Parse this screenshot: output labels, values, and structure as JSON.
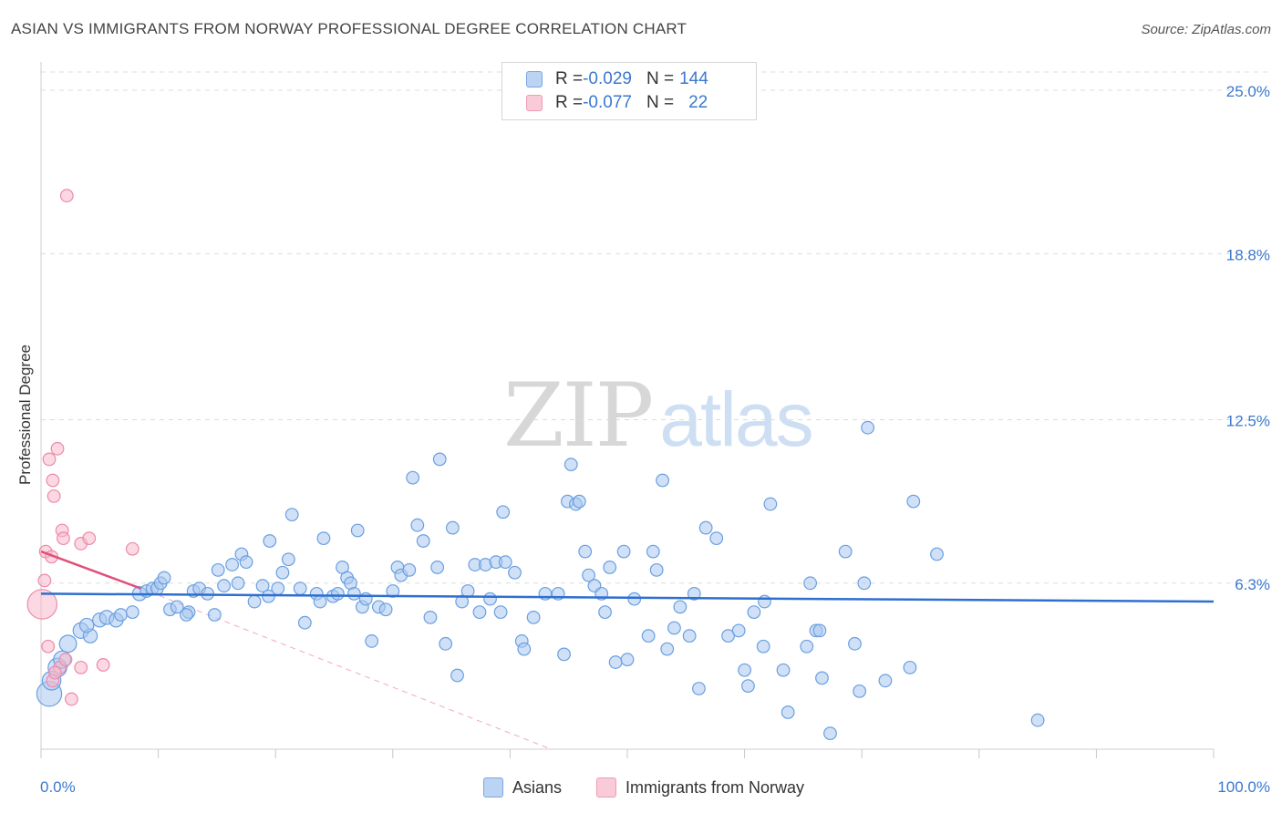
{
  "title": "ASIAN VS IMMIGRANTS FROM NORWAY PROFESSIONAL DEGREE CORRELATION CHART",
  "source": "Source: ZipAtlas.com",
  "watermark": {
    "zip": "ZIP",
    "atlas": "atlas"
  },
  "legend": {
    "asians": {
      "r_label": "R = ",
      "r_value": "-0.029",
      "n_label": "N = ",
      "n_value": "144"
    },
    "norway": {
      "r_label": "R = ",
      "r_value": "-0.077",
      "n_label": "N = ",
      "n_value": "22"
    }
  },
  "bottom_legend": {
    "asians": "Asians",
    "norway": "Immigrants from Norway"
  },
  "colors": {
    "asian_fill": "#a9c8f0",
    "asian_stroke": "#6a9fe0",
    "asian_line": "#2e6fd0",
    "norway_fill": "#f7b8cb",
    "norway_stroke": "#ec8aaa",
    "norway_line": "#e0507a",
    "grid": "#dcdcdc",
    "tick_label": "#3b78d0"
  },
  "chart_data": {
    "type": "scatter",
    "title": "ASIAN VS IMMIGRANTS FROM NORWAY PROFESSIONAL DEGREE CORRELATION CHART",
    "xlabel": "",
    "ylabel": "Professional Degree",
    "xlim": [
      0,
      100
    ],
    "ylim": [
      0,
      25.9
    ],
    "x_tick_labels": [
      "0.0%",
      "100.0%"
    ],
    "y_ticks": [
      6.3,
      12.5,
      18.8,
      25.0
    ],
    "y_tick_labels": [
      "6.3%",
      "12.5%",
      "18.8%",
      "25.0%"
    ],
    "grid": true,
    "series": [
      {
        "name": "Asians",
        "trend": {
          "x": [
            0,
            100
          ],
          "y": [
            5.9,
            5.6
          ]
        },
        "points": [
          [
            0.7,
            2.1,
            1.6
          ],
          [
            0.9,
            2.6,
            1.2
          ],
          [
            1.4,
            3.1,
            1.2
          ],
          [
            1.8,
            3.4,
            1.1
          ],
          [
            2.3,
            4.0,
            1.1
          ],
          [
            3.4,
            4.5,
            1.0
          ],
          [
            4.2,
            4.3,
            0.9
          ],
          [
            3.9,
            4.7,
            0.9
          ],
          [
            5.0,
            4.9,
            0.9
          ],
          [
            5.6,
            5.0,
            0.9
          ],
          [
            6.4,
            4.9,
            0.9
          ],
          [
            6.8,
            5.1,
            0.8
          ],
          [
            7.8,
            5.2,
            0.8
          ],
          [
            8.4,
            5.9,
            0.9
          ],
          [
            9.0,
            6.0,
            0.8
          ],
          [
            9.5,
            6.1,
            0.8
          ],
          [
            9.9,
            6.1,
            0.8
          ],
          [
            10.2,
            6.3,
            0.8
          ],
          [
            10.5,
            6.5,
            0.8
          ],
          [
            11.0,
            5.3,
            0.8
          ],
          [
            11.6,
            5.4,
            0.8
          ],
          [
            12.6,
            5.2,
            0.8
          ],
          [
            12.4,
            5.1,
            0.8
          ],
          [
            13.0,
            6.0,
            0.8
          ],
          [
            13.5,
            6.1,
            0.8
          ],
          [
            14.2,
            5.9,
            0.8
          ],
          [
            14.8,
            5.1,
            0.8
          ],
          [
            15.1,
            6.8,
            0.8
          ],
          [
            15.6,
            6.2,
            0.8
          ],
          [
            16.3,
            7.0,
            0.8
          ],
          [
            16.8,
            6.3,
            0.8
          ],
          [
            17.1,
            7.4,
            0.8
          ],
          [
            17.5,
            7.1,
            0.8
          ],
          [
            18.2,
            5.6,
            0.8
          ],
          [
            18.9,
            6.2,
            0.8
          ],
          [
            19.4,
            5.8,
            0.8
          ],
          [
            19.5,
            7.9,
            0.8
          ],
          [
            20.2,
            6.1,
            0.8
          ],
          [
            20.6,
            6.7,
            0.8
          ],
          [
            21.1,
            7.2,
            0.8
          ],
          [
            21.4,
            8.9,
            0.8
          ],
          [
            22.1,
            6.1,
            0.8
          ],
          [
            22.5,
            4.8,
            0.8
          ],
          [
            23.5,
            5.9,
            0.8
          ],
          [
            23.8,
            5.6,
            0.8
          ],
          [
            24.1,
            8.0,
            0.8
          ],
          [
            24.9,
            5.8,
            0.8
          ],
          [
            25.3,
            5.9,
            0.8
          ],
          [
            25.7,
            6.9,
            0.8
          ],
          [
            26.1,
            6.5,
            0.8
          ],
          [
            26.4,
            6.3,
            0.8
          ],
          [
            26.7,
            5.9,
            0.8
          ],
          [
            27.0,
            8.3,
            0.8
          ],
          [
            27.4,
            5.4,
            0.8
          ],
          [
            27.7,
            5.7,
            0.8
          ],
          [
            28.2,
            4.1,
            0.8
          ],
          [
            28.8,
            5.4,
            0.8
          ],
          [
            29.4,
            5.3,
            0.8
          ],
          [
            30.0,
            6.0,
            0.8
          ],
          [
            30.4,
            6.9,
            0.8
          ],
          [
            30.7,
            6.6,
            0.8
          ],
          [
            31.4,
            6.8,
            0.8
          ],
          [
            31.7,
            10.3,
            0.8
          ],
          [
            32.1,
            8.5,
            0.8
          ],
          [
            32.6,
            7.9,
            0.8
          ],
          [
            33.2,
            5.0,
            0.8
          ],
          [
            33.8,
            6.9,
            0.8
          ],
          [
            34.0,
            11.0,
            0.8
          ],
          [
            34.5,
            4.0,
            0.8
          ],
          [
            35.1,
            8.4,
            0.8
          ],
          [
            35.5,
            2.8,
            0.8
          ],
          [
            35.9,
            5.6,
            0.8
          ],
          [
            36.4,
            6.0,
            0.8
          ],
          [
            37.0,
            7.0,
            0.8
          ],
          [
            37.4,
            5.2,
            0.8
          ],
          [
            37.9,
            7.0,
            0.8
          ],
          [
            38.3,
            5.7,
            0.8
          ],
          [
            38.8,
            7.1,
            0.8
          ],
          [
            39.2,
            5.2,
            0.8
          ],
          [
            39.6,
            7.1,
            0.8
          ],
          [
            39.4,
            9.0,
            0.8
          ],
          [
            40.4,
            6.7,
            0.8
          ],
          [
            41.0,
            4.1,
            0.8
          ],
          [
            41.2,
            3.8,
            0.8
          ],
          [
            42.0,
            5.0,
            0.8
          ],
          [
            43.0,
            5.9,
            0.8
          ],
          [
            44.1,
            5.9,
            0.8
          ],
          [
            44.6,
            3.6,
            0.8
          ],
          [
            44.9,
            9.4,
            0.8
          ],
          [
            45.2,
            10.8,
            0.8
          ],
          [
            45.6,
            9.3,
            0.8
          ],
          [
            45.9,
            9.4,
            0.8
          ],
          [
            46.4,
            7.5,
            0.8
          ],
          [
            46.7,
            6.6,
            0.8
          ],
          [
            47.2,
            6.2,
            0.8
          ],
          [
            47.8,
            5.9,
            0.8
          ],
          [
            48.1,
            5.2,
            0.8
          ],
          [
            48.5,
            6.9,
            0.8
          ],
          [
            49.0,
            3.3,
            0.8
          ],
          [
            49.7,
            7.5,
            0.8
          ],
          [
            50.0,
            3.4,
            0.8
          ],
          [
            50.6,
            5.7,
            0.8
          ],
          [
            51.8,
            4.3,
            0.8
          ],
          [
            52.2,
            7.5,
            0.8
          ],
          [
            52.5,
            6.8,
            0.8
          ],
          [
            53.0,
            10.2,
            0.8
          ],
          [
            53.4,
            3.8,
            0.8
          ],
          [
            54.0,
            4.6,
            0.8
          ],
          [
            54.5,
            5.4,
            0.8
          ],
          [
            55.3,
            4.3,
            0.8
          ],
          [
            55.7,
            5.9,
            0.8
          ],
          [
            56.1,
            2.3,
            0.8
          ],
          [
            56.7,
            8.4,
            0.8
          ],
          [
            57.6,
            8.0,
            0.8
          ],
          [
            58.6,
            4.3,
            0.8
          ],
          [
            59.5,
            4.5,
            0.8
          ],
          [
            60.0,
            3.0,
            0.8
          ],
          [
            60.3,
            2.4,
            0.8
          ],
          [
            60.8,
            5.2,
            0.8
          ],
          [
            61.6,
            3.9,
            0.8
          ],
          [
            61.7,
            5.6,
            0.8
          ],
          [
            62.2,
            9.3,
            0.8
          ],
          [
            63.3,
            3.0,
            0.8
          ],
          [
            63.7,
            1.4,
            0.8
          ],
          [
            65.3,
            3.9,
            0.8
          ],
          [
            65.6,
            6.3,
            0.8
          ],
          [
            66.1,
            4.5,
            0.8
          ],
          [
            66.4,
            4.5,
            0.8
          ],
          [
            66.6,
            2.7,
            0.8
          ],
          [
            67.3,
            0.6,
            0.8
          ],
          [
            68.6,
            7.5,
            0.8
          ],
          [
            69.4,
            4.0,
            0.8
          ],
          [
            69.8,
            2.2,
            0.8
          ],
          [
            70.2,
            6.3,
            0.8
          ],
          [
            70.5,
            12.2,
            0.8
          ],
          [
            72.0,
            2.6,
            0.8
          ],
          [
            74.1,
            3.1,
            0.8
          ],
          [
            74.4,
            9.4,
            0.8
          ],
          [
            76.4,
            7.4,
            0.8
          ],
          [
            85.0,
            1.1,
            0.8
          ]
        ]
      },
      {
        "name": "Immigrants from Norway",
        "trend": {
          "x": [
            0,
            8.5
          ],
          "y": [
            7.5,
            6.1
          ]
        },
        "trend_extension": {
          "x": [
            8.5,
            43.5
          ],
          "y": [
            6.1,
            0
          ]
        },
        "points": [
          [
            0.1,
            5.5,
            1.9
          ],
          [
            0.3,
            6.4,
            0.8
          ],
          [
            0.4,
            7.5,
            0.8
          ],
          [
            0.7,
            11.0,
            0.8
          ],
          [
            0.9,
            7.3,
            0.8
          ],
          [
            1.0,
            10.2,
            0.8
          ],
          [
            1.1,
            9.6,
            0.8
          ],
          [
            1.4,
            11.4,
            0.8
          ],
          [
            1.8,
            8.3,
            0.8
          ],
          [
            1.9,
            8.0,
            0.8
          ],
          [
            2.2,
            21.0,
            0.8
          ],
          [
            3.4,
            7.8,
            0.8
          ],
          [
            4.1,
            8.0,
            0.8
          ],
          [
            7.8,
            7.6,
            0.8
          ],
          [
            0.6,
            3.9,
            0.8
          ],
          [
            1.0,
            2.6,
            0.8
          ],
          [
            1.6,
            3.1,
            0.8
          ],
          [
            2.1,
            3.4,
            0.8
          ],
          [
            2.6,
            1.9,
            0.8
          ],
          [
            3.4,
            3.1,
            0.8
          ],
          [
            5.3,
            3.2,
            0.8
          ],
          [
            1.2,
            2.9,
            0.8
          ]
        ]
      }
    ]
  }
}
